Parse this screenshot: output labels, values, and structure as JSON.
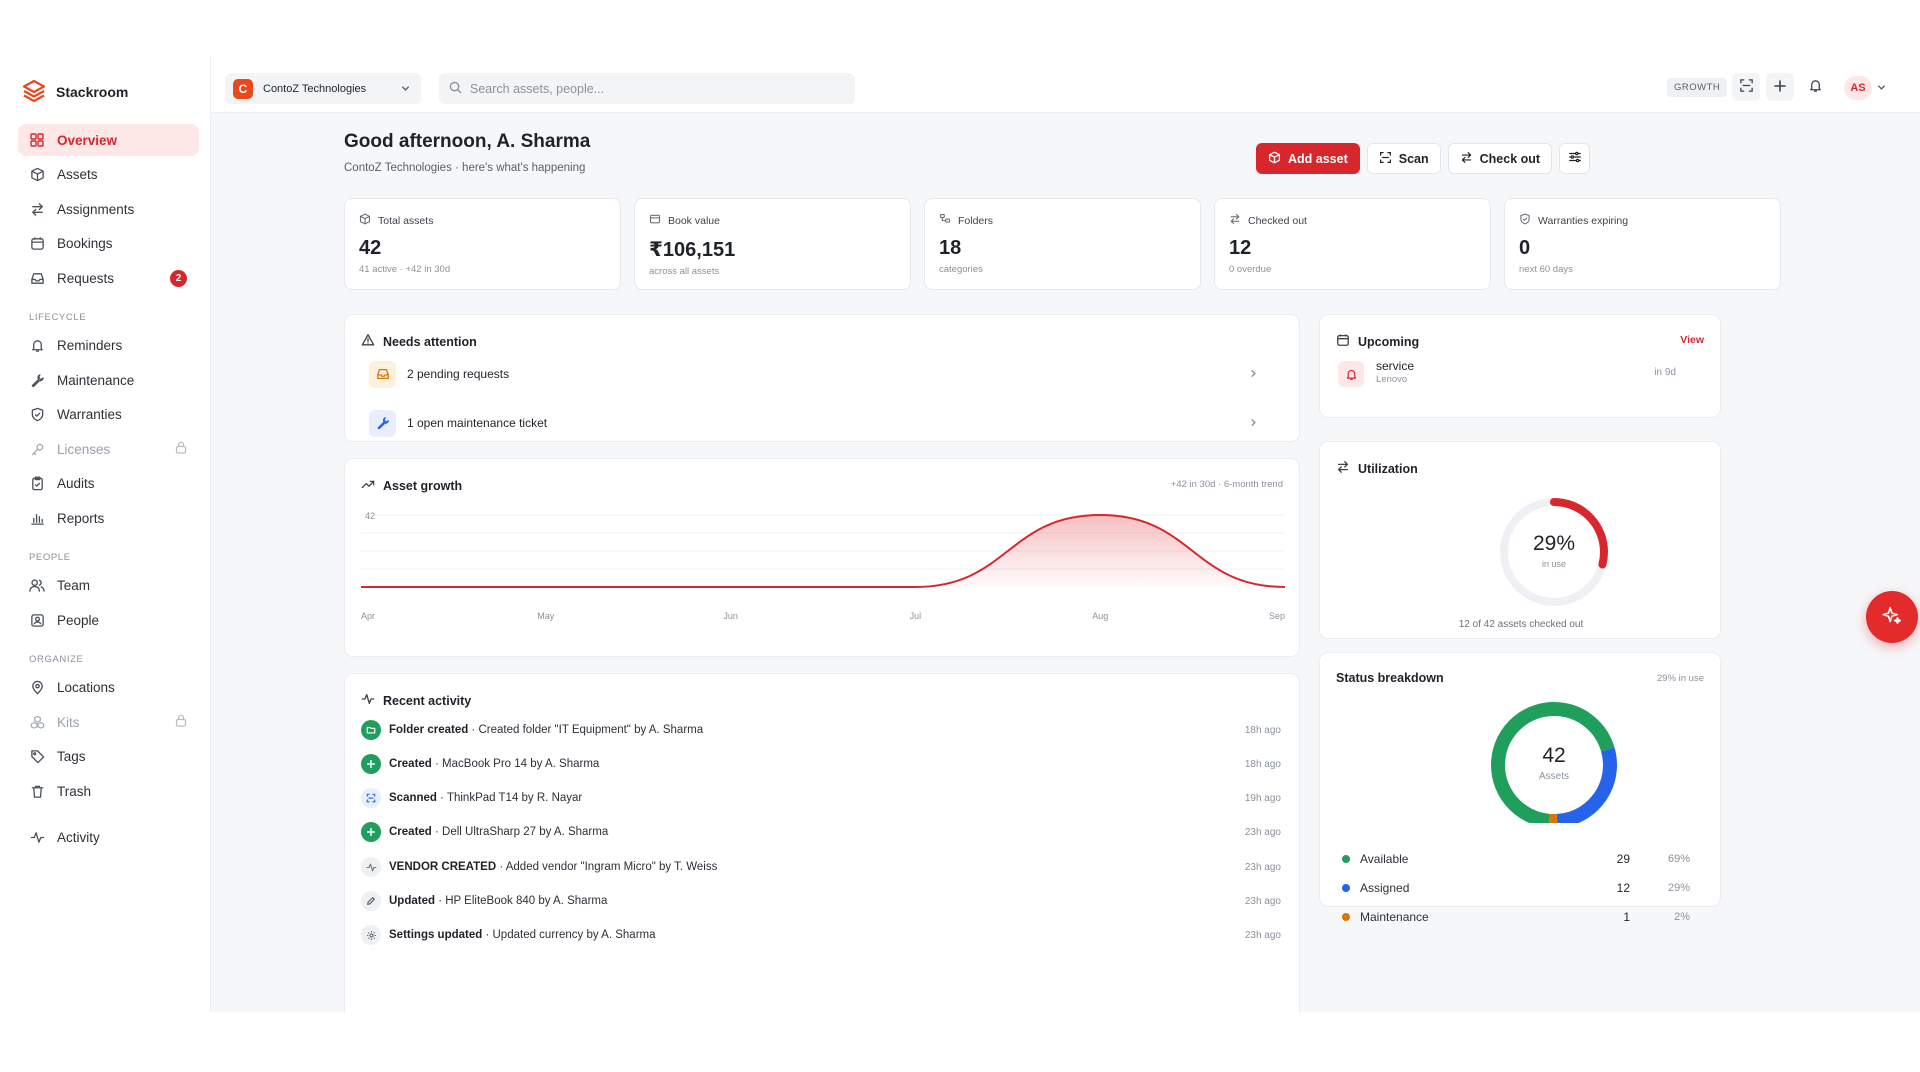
{
  "brand": {
    "name": "Stackroom"
  },
  "sidebar": {
    "main_items": [
      {
        "label": "Overview"
      },
      {
        "label": "Assets"
      },
      {
        "label": "Assignments"
      },
      {
        "label": "Bookings"
      },
      {
        "label": "Requests",
        "badge": "2"
      }
    ],
    "sections": [
      {
        "title": "LIFECYCLE",
        "items": [
          {
            "label": "Reminders"
          },
          {
            "label": "Maintenance"
          },
          {
            "label": "Warranties"
          },
          {
            "label": "Licenses"
          },
          {
            "label": "Audits"
          },
          {
            "label": "Reports"
          }
        ]
      },
      {
        "title": "PEOPLE",
        "items": [
          {
            "label": "Team"
          },
          {
            "label": "People"
          }
        ]
      },
      {
        "title": "ORGANIZE",
        "items": [
          {
            "label": "Locations"
          },
          {
            "label": "Kits"
          },
          {
            "label": "Tags"
          },
          {
            "label": "Trash"
          }
        ]
      }
    ],
    "activity_item": {
      "label": "Activity"
    }
  },
  "topbar": {
    "org_initial": "C",
    "org_name": "ContoZ Technologies",
    "search_placeholder": "Search assets, people...",
    "plan_badge": "GROWTH",
    "avatar_initials": "AS"
  },
  "header": {
    "greeting": "Good afternoon, A. Sharma",
    "subtitle": "ContoZ Technologies · here's what's happening",
    "add_asset_label": "Add asset",
    "scan_label": "Scan",
    "checkout_label": "Check out"
  },
  "stats": [
    {
      "label": "Total assets",
      "value": "42",
      "sub": "41 active · +42 in 30d"
    },
    {
      "label": "Book value",
      "value": "₹106,151",
      "sub": "across all assets"
    },
    {
      "label": "Folders",
      "value": "18",
      "sub": "categories"
    },
    {
      "label": "Checked out",
      "value": "12",
      "sub": "0 overdue"
    },
    {
      "label": "Warranties expiring",
      "value": "0",
      "sub": "next 60 days"
    }
  ],
  "attention": {
    "title": "Needs attention",
    "items": [
      {
        "text": "2 pending requests"
      },
      {
        "text": "1 open maintenance ticket"
      }
    ]
  },
  "growth": {
    "title": "Asset growth",
    "meta": "+42 in 30d · 6-month trend"
  },
  "chart_data": {
    "type": "area",
    "title": "Asset growth",
    "categories": [
      "Apr",
      "May",
      "Jun",
      "Jul",
      "Aug",
      "Sep"
    ],
    "values": [
      0,
      0,
      0,
      0,
      42,
      0
    ],
    "ymax_label": "42",
    "ylim": [
      0,
      42
    ]
  },
  "activity": {
    "title": "Recent activity",
    "items": [
      {
        "action": "Folder created",
        "detail": " · Created folder \"IT Equipment\" by A. Sharma",
        "time": "18h ago",
        "icon": "folder-icon"
      },
      {
        "action": "Created",
        "detail": " · MacBook Pro 14 by A. Sharma",
        "time": "18h ago",
        "icon": "plus-icon"
      },
      {
        "action": "Scanned",
        "detail": " · ThinkPad T14 by R. Nayar",
        "time": "19h ago",
        "icon": "scan-icon"
      },
      {
        "action": "Created",
        "detail": " · Dell UltraSharp 27 by A. Sharma",
        "time": "23h ago",
        "icon": "plus-icon"
      },
      {
        "action": "VENDOR CREATED",
        "detail": " · Added vendor \"Ingram Micro\" by T. Weiss",
        "time": "23h ago",
        "icon": "pulse-icon"
      },
      {
        "action": "Updated",
        "detail": " · HP EliteBook 840 by A. Sharma",
        "time": "23h ago",
        "icon": "pencil-icon"
      },
      {
        "action": "Settings updated",
        "detail": " · Updated currency by A. Sharma",
        "time": "23h ago",
        "icon": "gear-icon"
      }
    ]
  },
  "upcoming": {
    "title": "Upcoming",
    "view_label": "View",
    "item": {
      "title": "service",
      "sub": "Lenovo",
      "time": "in 9d"
    }
  },
  "utilization": {
    "title": "Utilization",
    "percent_label": "29%",
    "percent_value": 0.29,
    "caption": "in use",
    "footnote": "12 of 42 assets checked out"
  },
  "status": {
    "title": "Status breakdown",
    "meta": "29% in use",
    "total": "42",
    "total_caption": "Assets",
    "segments": [
      {
        "label": "Available",
        "count": "29",
        "pct": "69%",
        "value": 29,
        "color": "#1f9e5c"
      },
      {
        "label": "Assigned",
        "count": "12",
        "pct": "29%",
        "value": 12,
        "color": "#2563eb"
      },
      {
        "label": "Maintenance",
        "count": "1",
        "pct": "2%",
        "value": 1,
        "color": "#d97706"
      }
    ]
  },
  "colors": {
    "accent": "#d8262d",
    "success": "#1f9e5c",
    "info": "#2563eb",
    "warning": "#d97706"
  }
}
